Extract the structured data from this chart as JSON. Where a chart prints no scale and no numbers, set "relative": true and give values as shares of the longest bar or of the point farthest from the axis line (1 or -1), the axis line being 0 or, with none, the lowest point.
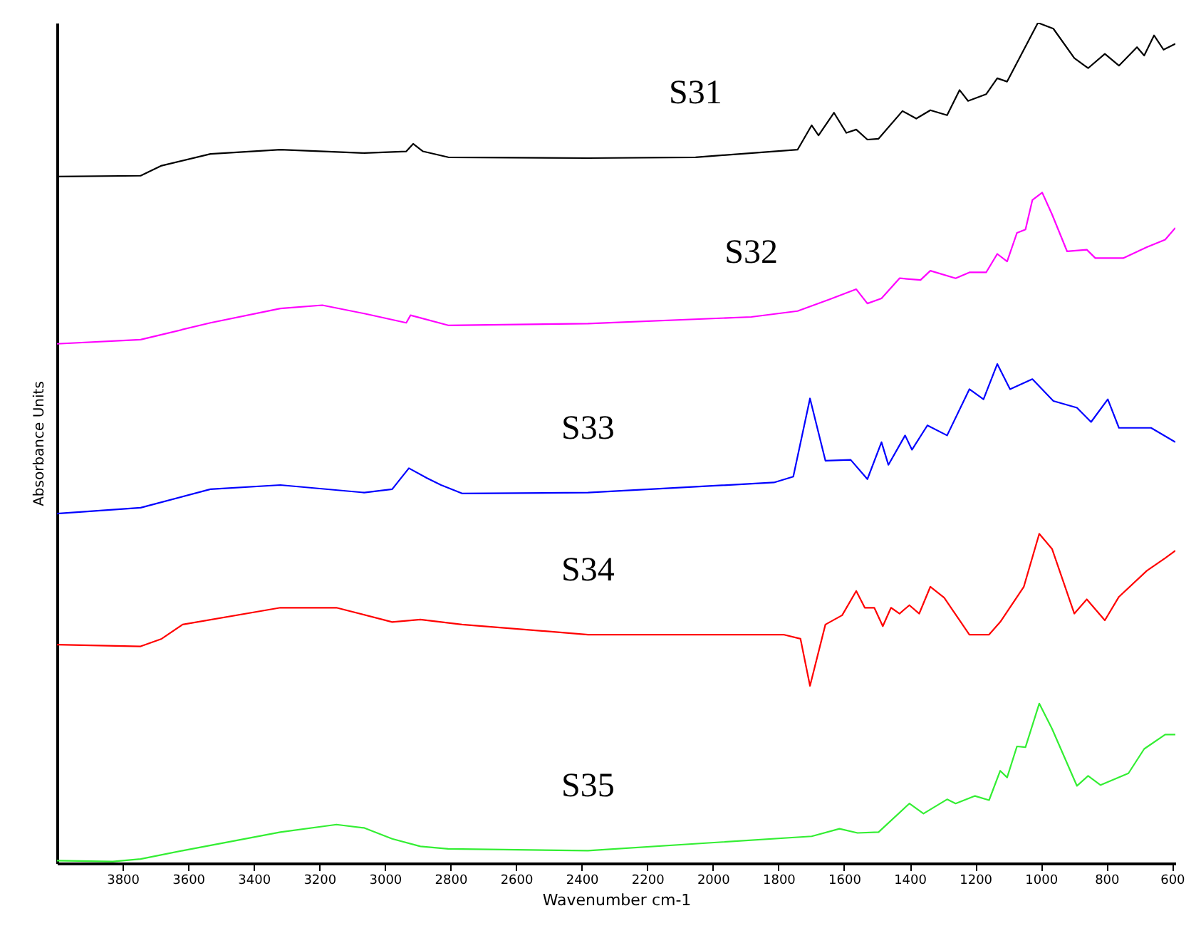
{
  "chart_data": {
    "type": "line",
    "xlabel": "Wavenumber cm-1",
    "ylabel": "Absorbance Units",
    "relative": true,
    "xlim": [
      4000,
      590
    ],
    "xticks": [
      3800,
      3600,
      3400,
      3200,
      3000,
      2800,
      2600,
      2400,
      2200,
      2000,
      1800,
      1600,
      1400,
      1200,
      1000,
      800,
      600
    ],
    "grid": false,
    "marker": "none",
    "line_style": "solid",
    "series": [
      {
        "name": "S31",
        "color": "#000000",
        "x": [
          4000,
          3745,
          3681,
          3532,
          3319,
          3063,
          2935,
          2914,
          2884,
          2807,
          2381,
          2053,
          1742,
          1699,
          1678,
          1631,
          1593,
          1563,
          1529,
          1495,
          1422,
          1380,
          1337,
          1286,
          1248,
          1222,
          1167,
          1133,
          1103,
          1009,
          962,
          898,
          856,
          805,
          762,
          707,
          685,
          655,
          626,
          590
        ],
        "values": [
          0.817,
          0.818,
          0.83,
          0.844,
          0.849,
          0.845,
          0.847,
          0.856,
          0.847,
          0.84,
          0.839,
          0.84,
          0.849,
          0.878,
          0.866,
          0.893,
          0.869,
          0.873,
          0.861,
          0.862,
          0.895,
          0.886,
          0.896,
          0.89,
          0.92,
          0.907,
          0.915,
          0.934,
          0.93,
          1.0,
          0.993,
          0.958,
          0.946,
          0.963,
          0.949,
          0.971,
          0.961,
          0.985,
          0.968,
          0.975
        ]
      },
      {
        "name": "S32",
        "color": "#ff00ff",
        "x": [
          4000,
          3745,
          3532,
          3319,
          3191,
          3063,
          2935,
          2922,
          2807,
          2381,
          1883,
          1742,
          1644,
          1563,
          1529,
          1486,
          1431,
          1367,
          1337,
          1260,
          1218,
          1167,
          1133,
          1103,
          1073,
          1047,
          1026,
          996,
          966,
          920,
          860,
          834,
          749,
          677,
          621,
          590
        ],
        "values": [
          0.618,
          0.623,
          0.643,
          0.66,
          0.664,
          0.654,
          0.643,
          0.652,
          0.64,
          0.642,
          0.65,
          0.657,
          0.671,
          0.683,
          0.666,
          0.672,
          0.696,
          0.694,
          0.705,
          0.696,
          0.703,
          0.703,
          0.725,
          0.716,
          0.75,
          0.754,
          0.789,
          0.798,
          0.772,
          0.728,
          0.73,
          0.72,
          0.72,
          0.733,
          0.742,
          0.756
        ]
      },
      {
        "name": "S33",
        "color": "#0000ff",
        "x": [
          4000,
          3745,
          3532,
          3319,
          3063,
          2978,
          2927,
          2871,
          2829,
          2765,
          2381,
          1814,
          1755,
          1704,
          1657,
          1580,
          1529,
          1486,
          1465,
          1414,
          1393,
          1346,
          1286,
          1218,
          1175,
          1133,
          1094,
          1026,
          962,
          890,
          847,
          796,
          762,
          664,
          590
        ],
        "values": [
          0.416,
          0.423,
          0.445,
          0.45,
          0.441,
          0.445,
          0.47,
          0.458,
          0.45,
          0.44,
          0.441,
          0.453,
          0.46,
          0.553,
          0.479,
          0.48,
          0.457,
          0.501,
          0.474,
          0.509,
          0.492,
          0.521,
          0.509,
          0.564,
          0.552,
          0.594,
          0.564,
          0.576,
          0.55,
          0.542,
          0.525,
          0.552,
          0.518,
          0.518,
          0.501
        ]
      },
      {
        "name": "S34",
        "color": "#ff0000",
        "x": [
          4000,
          3745,
          3681,
          3617,
          3319,
          3148,
          2978,
          2892,
          2765,
          2381,
          1785,
          1733,
          1704,
          1657,
          1606,
          1563,
          1537,
          1508,
          1482,
          1457,
          1431,
          1401,
          1371,
          1337,
          1295,
          1218,
          1158,
          1124,
          1052,
          1005,
          966,
          898,
          860,
          805,
          762,
          677,
          621,
          590
        ],
        "values": [
          0.26,
          0.258,
          0.267,
          0.284,
          0.304,
          0.304,
          0.287,
          0.29,
          0.284,
          0.272,
          0.272,
          0.267,
          0.211,
          0.284,
          0.295,
          0.324,
          0.304,
          0.304,
          0.282,
          0.304,
          0.297,
          0.307,
          0.297,
          0.329,
          0.316,
          0.272,
          0.272,
          0.287,
          0.329,
          0.392,
          0.374,
          0.297,
          0.314,
          0.289,
          0.317,
          0.348,
          0.363,
          0.372
        ]
      },
      {
        "name": "S35",
        "color": "#33ee33",
        "x": [
          4000,
          3830,
          3745,
          3617,
          3319,
          3148,
          3063,
          2978,
          2892,
          2807,
          2381,
          1699,
          1614,
          1559,
          1495,
          1401,
          1358,
          1286,
          1260,
          1201,
          1158,
          1124,
          1103,
          1073,
          1047,
          1005,
          966,
          890,
          856,
          818,
          733,
          685,
          621,
          590
        ],
        "values": [
          0.003,
          0.002,
          0.005,
          0.015,
          0.037,
          0.046,
          0.042,
          0.029,
          0.02,
          0.017,
          0.015,
          0.032,
          0.041,
          0.036,
          0.037,
          0.071,
          0.059,
          0.076,
          0.071,
          0.08,
          0.075,
          0.11,
          0.102,
          0.139,
          0.138,
          0.19,
          0.16,
          0.092,
          0.104,
          0.093,
          0.107,
          0.136,
          0.153,
          0.153
        ]
      }
    ]
  }
}
